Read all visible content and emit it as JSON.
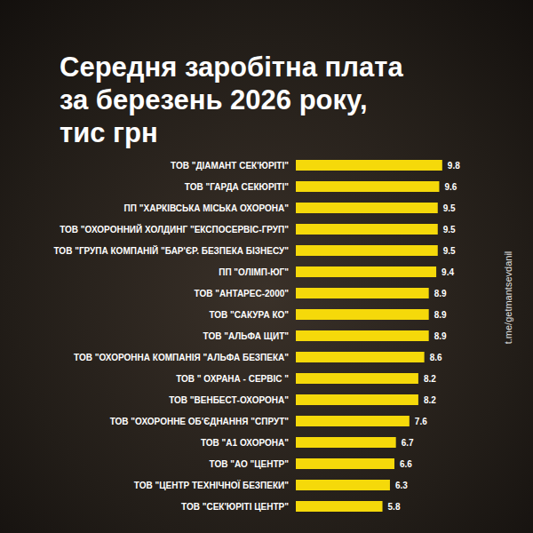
{
  "chart_data": {
    "type": "bar",
    "title": "Середня заробітна плата\nза березень 2026 року,\nтис грн",
    "orientation": "horizontal",
    "categories": [
      "ТОВ \"ДІАМАНТ СЕК'ЮРІТІ\"",
      "ТОВ \"ГАРДА СЕКЮРІТІ\"",
      "ПП \"ХАРКІВСЬКА МІСЬКА ОХОРОНА\"",
      "ТОВ \"ОХОРОННИЙ ХОЛДИНГ \"ЕКСПОСЕРВІС-ГРУП\"",
      "ТОВ \"ГРУПА КОМПАНІЙ \"БАР'ЄР. БЕЗПЕКА БІЗНЕСУ\"",
      "ПП \"ОЛІМП-ЮГ\"",
      "ТОВ \"АНТАРЕС-2000\"",
      "ТОВ \"САКУРА КО\"",
      "ТОВ \"АЛЬФА ЩИТ\"",
      "ТОВ \"ОХОРОННА КОМПАНІЯ \"АЛЬФА БЕЗПЕКА\"",
      "ТОВ \" ОХРАНА - СЕРВІС \"",
      "ТОВ \"ВЕНБЕСТ-ОХОРОНА\"",
      "ТОВ \"ОХОРОННЕ ОБ'ЄДНАННЯ \"СПРУТ\"",
      "ТОВ \"А1 ОХОРОНА\"",
      "ТОВ \"АО \"ЦЕНТР\"",
      "ТОВ \"ЦЕНТР ТЕХНІЧНОЇ БЕЗПЕКИ\"",
      "ТОВ \"СЕК'ЮРІТІ ЦЕНТР\""
    ],
    "values": [
      9.8,
      9.6,
      9.5,
      9.5,
      9.5,
      9.4,
      8.9,
      8.9,
      8.9,
      8.6,
      8.2,
      8.2,
      7.6,
      6.7,
      6.6,
      6.3,
      5.8
    ],
    "color": "#f5d90a",
    "xlim": [
      0,
      11
    ],
    "data_labels": true,
    "tick_labels": "y",
    "grid": false,
    "annotations": [
      "t.me/getmantsevdanil"
    ]
  }
}
